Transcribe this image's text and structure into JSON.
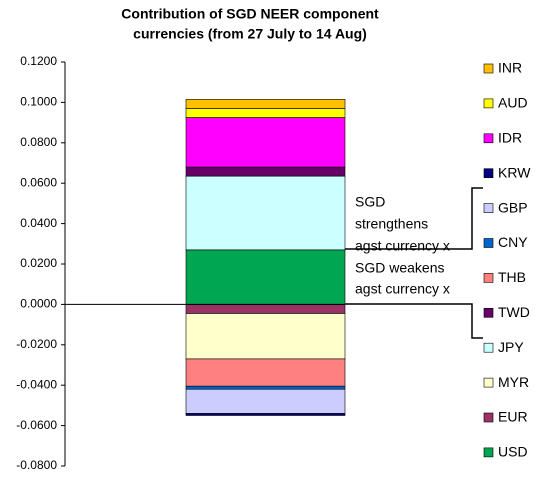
{
  "chart_data": {
    "type": "stacked_bar",
    "title": [
      "Contribution of SGD NEER component",
      "currencies (from 27 July to 14 Aug)"
    ],
    "categories": [
      null
    ],
    "series": [
      {
        "name": "USD",
        "color": "#00a651",
        "values": [
          0.027
        ]
      },
      {
        "name": "EUR",
        "color": "#993366",
        "values": [
          -0.0045
        ]
      },
      {
        "name": "MYR",
        "color": "#ffffcc",
        "values": [
          -0.0225
        ]
      },
      {
        "name": "JPY",
        "color": "#ccffff",
        "values": [
          0.0365
        ]
      },
      {
        "name": "TWD",
        "color": "#660066",
        "values": [
          0.0045
        ]
      },
      {
        "name": "THB",
        "color": "#ff8080",
        "values": [
          -0.0135
        ]
      },
      {
        "name": "CNY",
        "color": "#0066cc",
        "values": [
          -0.0015
        ]
      },
      {
        "name": "GBP",
        "color": "#ccccff",
        "values": [
          -0.012
        ]
      },
      {
        "name": "KRW",
        "color": "#000080",
        "values": [
          -0.001
        ]
      },
      {
        "name": "IDR",
        "color": "#ff00ff",
        "values": [
          0.0245
        ]
      },
      {
        "name": "AUD",
        "color": "#ffff00",
        "values": [
          0.0045
        ]
      },
      {
        "name": "INR",
        "color": "#ffc000",
        "values": [
          0.0045
        ]
      }
    ],
    "ylim": [
      -0.08,
      0.12
    ],
    "yticks": [
      {
        "value": 0.12,
        "label": "0.1200"
      },
      {
        "value": 0.1,
        "label": "0.1000"
      },
      {
        "value": 0.08,
        "label": "0.0800"
      },
      {
        "value": 0.06,
        "label": "0.0600"
      },
      {
        "value": 0.04,
        "label": "0.0400"
      },
      {
        "value": 0.02,
        "label": "0.0200"
      },
      {
        "value": 0,
        "label": "0.0000"
      },
      {
        "value": -0.02,
        "label": "-0.0200"
      },
      {
        "value": -0.04,
        "label": "-0.0400"
      },
      {
        "value": -0.06,
        "label": "-0.0600"
      },
      {
        "value": -0.08,
        "label": "-0.0800"
      }
    ],
    "annotations": [
      [
        "SGD",
        "strengthens",
        "agst currency x"
      ],
      [
        "SGD weakens",
        "agst currency x"
      ]
    ],
    "legend": "right"
  }
}
